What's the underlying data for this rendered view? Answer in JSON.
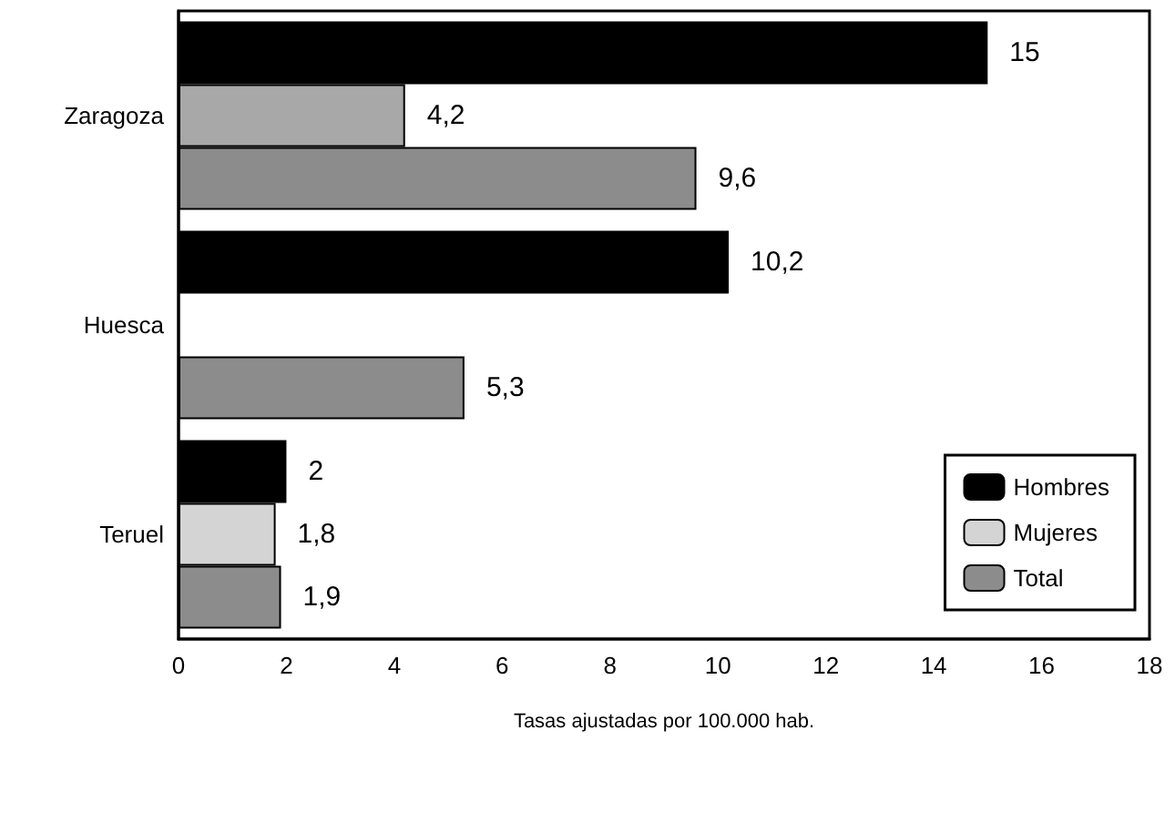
{
  "chart_data": {
    "type": "bar",
    "orientation": "horizontal",
    "xlabel": "Tasas ajustadas por 100.000 hab.",
    "categories": [
      "Zaragoza",
      "Huesca",
      "Teruel"
    ],
    "series": [
      {
        "name": "Hombres",
        "color": "#000000",
        "values": [
          15,
          10.2,
          2
        ],
        "value_labels": [
          "15",
          "10,2",
          "2"
        ]
      },
      {
        "name": "Mujeres",
        "color": "#d4d4d4",
        "colors": [
          "#a8a8a8",
          "#d4d4d4",
          "#d4d4d4"
        ],
        "values": [
          4.2,
          null,
          1.8
        ],
        "value_labels": [
          "4,2",
          null,
          "1,8"
        ]
      },
      {
        "name": "Total",
        "color": "#8c8c8c",
        "values": [
          9.6,
          5.3,
          1.9
        ],
        "value_labels": [
          "9,6",
          "5,3",
          "1,9"
        ]
      }
    ],
    "xlim": [
      0,
      18
    ],
    "xticks": [
      0,
      2,
      4,
      6,
      8,
      10,
      12,
      14,
      16,
      18
    ],
    "grid": false,
    "legend": "bottom right"
  }
}
